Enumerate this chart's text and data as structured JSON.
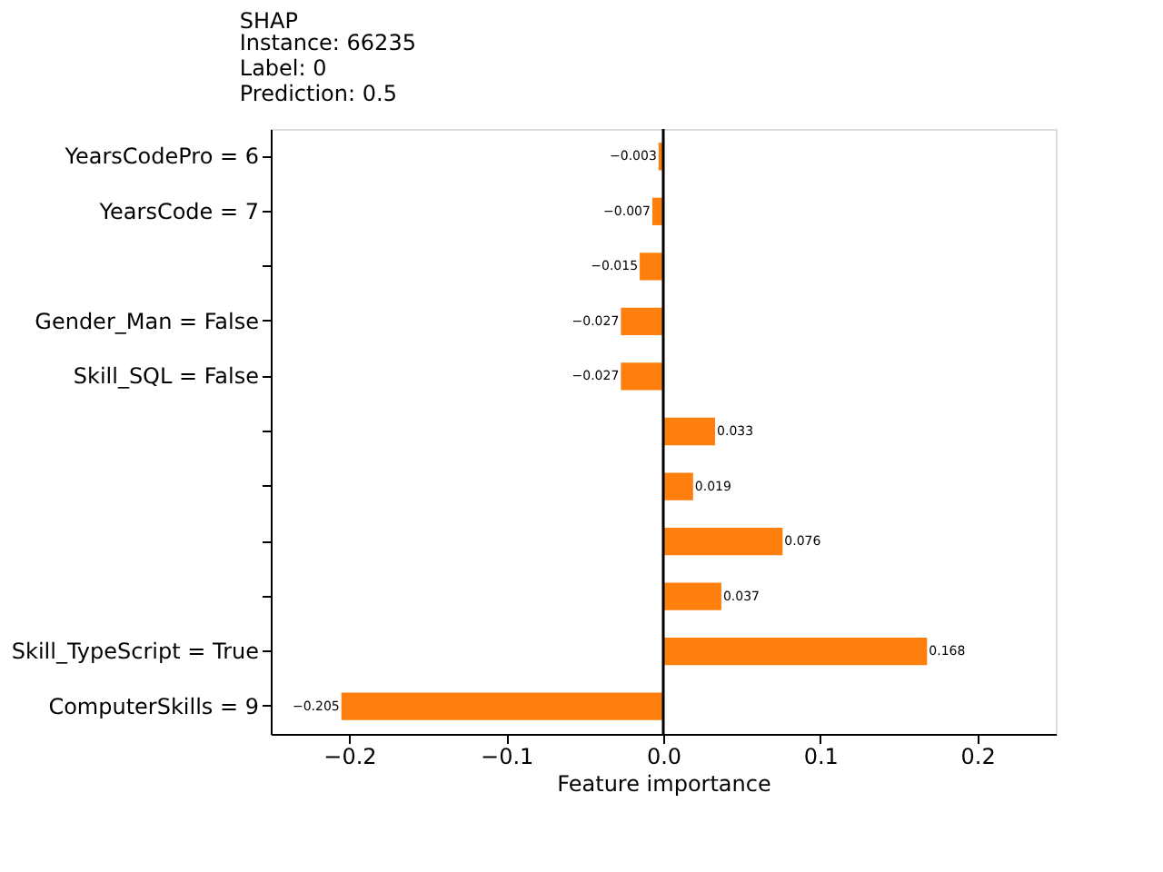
{
  "chart_data": {
    "type": "bar",
    "orientation": "horizontal",
    "title": "SHAP",
    "annotations": [
      "Instance:              66235",
      "Label:                     0",
      "Prediction:              0.5"
    ],
    "categories": [
      "YearsCodePro = 6",
      "YearsCode = 7",
      null,
      "Gender_Man = False",
      "Skill_SQL = False",
      null,
      null,
      null,
      null,
      "Skill_TypeScript = True",
      "ComputerSkills = 9"
    ],
    "values": [
      -0.003,
      -0.007,
      -0.015,
      -0.027,
      -0.027,
      0.033,
      0.019,
      0.076,
      0.037,
      0.168,
      -0.205
    ],
    "color": "#ff7f0e",
    "xlabel": "Feature importance",
    "data_labels": true,
    "xlim": [
      -0.25,
      0.25
    ],
    "xticks": [
      {
        "value": -0.2,
        "label": "−0.2"
      },
      {
        "value": -0.1,
        "label": "−0.1"
      },
      {
        "value": 0,
        "label": "0.0"
      },
      {
        "value": 0.1,
        "label": "0.1"
      },
      {
        "value": 0.2,
        "label": "0.2"
      }
    ],
    "ref_lines": [
      {
        "axis": "x",
        "value": 0,
        "color": "#000000"
      }
    ],
    "grid": false
  }
}
